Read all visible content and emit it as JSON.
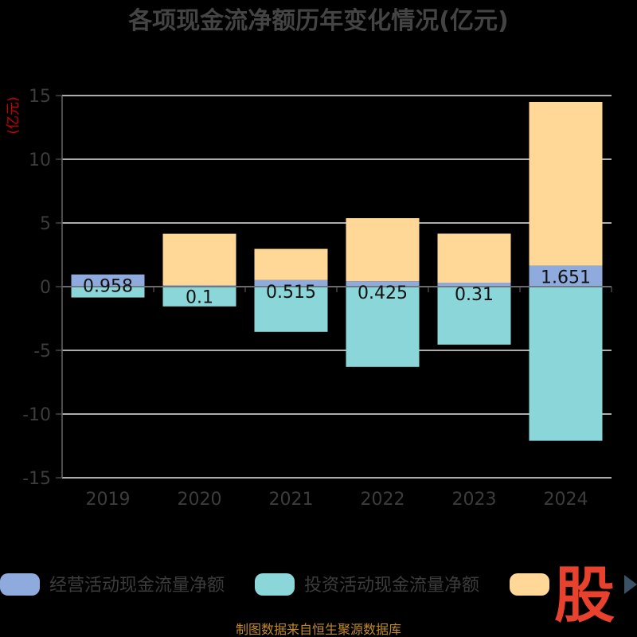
{
  "chart_data": {
    "type": "bar",
    "stacked": true,
    "title": "各项现金流净额历年变化情况(亿元)",
    "unit_label": "(亿元)",
    "categories": [
      "2019",
      "2020",
      "2021",
      "2022",
      "2023",
      "2024"
    ],
    "ylim": [
      -15,
      15
    ],
    "yticks": [
      15,
      10,
      5,
      0,
      -5,
      -10,
      -15
    ],
    "grid": true,
    "legend_position": "bottom",
    "series": [
      {
        "name": "经营活动现金流量净额",
        "color": "#8faadc",
        "values": [
          0.958,
          0.1,
          0.515,
          0.425,
          0.31,
          1.651
        ],
        "labels": [
          "0.958",
          "0.1",
          "0.515",
          "0.425",
          "0.31",
          "1.651"
        ]
      },
      {
        "name": "投资活动现金流量净额",
        "color": "#8ad6d8",
        "values": [
          -0.85,
          -1.55,
          -3.55,
          -6.3,
          -4.55,
          -12.1
        ],
        "labels": null
      },
      {
        "name": "",
        "color": "#ffd898",
        "values": [
          0,
          4.05,
          2.45,
          4.95,
          3.85,
          12.85
        ],
        "labels": null
      }
    ]
  },
  "source_text": "制图数据来自恒生聚源数据库",
  "watermark_text": "股"
}
